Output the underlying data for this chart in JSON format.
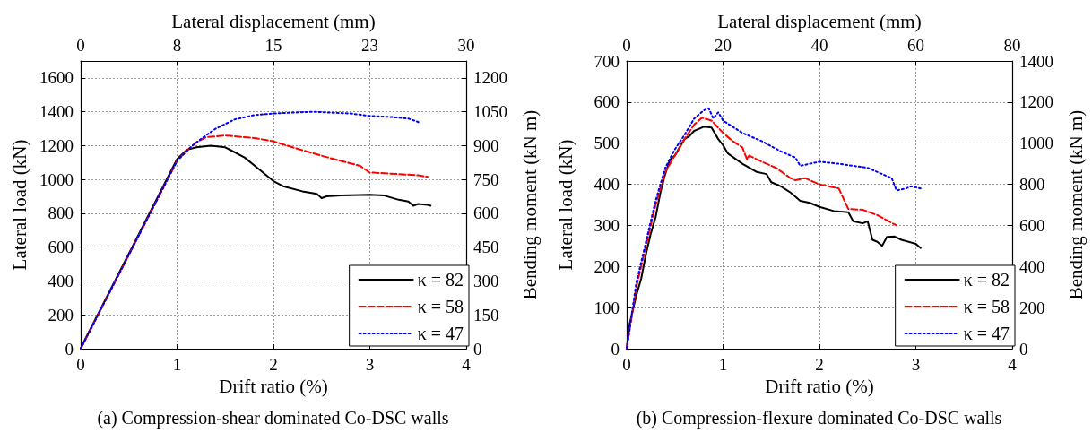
{
  "chart_data": [
    {
      "type": "line",
      "title": "(a) Compression-shear dominated Co-DSC walls",
      "xlabel": "Drift ratio (%)",
      "ylabel": "Lateral load (kN)",
      "y2label": "Bending moment (kN m)",
      "x2label": "Lateral displacement (mm)",
      "xlim": [
        0,
        4
      ],
      "xticks": [
        0,
        1,
        2,
        3,
        4
      ],
      "ylim": [
        0,
        1700
      ],
      "yticks": [
        0,
        200,
        400,
        600,
        800,
        1000,
        1200,
        1400,
        1600
      ],
      "y2lim": [
        0,
        1275
      ],
      "y2ticks": [
        0,
        150,
        300,
        450,
        600,
        750,
        900,
        1050,
        1200
      ],
      "x2lim": [
        0,
        30
      ],
      "x2ticks": [
        0,
        {
          "value": 7.5,
          "label": "8"
        },
        15,
        {
          "value": 22.5,
          "label": "23"
        },
        30
      ],
      "grid": true,
      "legend": "bottom right",
      "series": [
        {
          "name": "κ = 82",
          "color": "#000000",
          "line_style": "solid",
          "x": [
            0,
            0.05,
            1,
            1.1,
            1.2,
            1.35,
            1.5,
            1.7,
            1.85,
            2,
            2.1,
            2.3,
            2.45,
            2.5,
            2.55,
            2.7,
            3,
            3.15,
            3.3,
            3.4,
            3.45,
            3.5,
            3.6,
            3.63
          ],
          "values": [
            0,
            60,
            1120,
            1175,
            1190,
            1200,
            1190,
            1130,
            1060,
            990,
            960,
            930,
            915,
            890,
            900,
            905,
            910,
            905,
            880,
            870,
            845,
            855,
            850,
            845
          ]
        },
        {
          "name": "κ = 58",
          "color": "#ff0000",
          "line_style": "dashed",
          "x": [
            0,
            1,
            1.1,
            1.2,
            1.3,
            1.5,
            1.8,
            2,
            2.2,
            2.5,
            2.9,
            3,
            3.05,
            3.5,
            3.6
          ],
          "values": [
            0,
            1110,
            1170,
            1220,
            1250,
            1260,
            1245,
            1225,
            1190,
            1140,
            1080,
            1040,
            1040,
            1025,
            1015
          ]
        },
        {
          "name": "κ = 47",
          "color": "#0000ff",
          "line_style": "dotted",
          "x": [
            0,
            1,
            1.15,
            1.25,
            1.4,
            1.6,
            1.8,
            2,
            2.2,
            2.4,
            2.6,
            2.8,
            3,
            3.2,
            3.4,
            3.5,
            3.52
          ],
          "values": [
            0,
            1110,
            1195,
            1240,
            1300,
            1355,
            1380,
            1390,
            1395,
            1400,
            1395,
            1390,
            1375,
            1370,
            1360,
            1340,
            1330
          ]
        }
      ]
    },
    {
      "type": "line",
      "title": "(b) Compression-flexure dominated Co-DSC walls",
      "xlabel": "Drift ratio (%)",
      "ylabel": "Lateral load (kN)",
      "y2label": "Bending moment (kN m)",
      "x2label": "Lateral displacement (mm)",
      "xlim": [
        0,
        4
      ],
      "xticks": [
        0,
        1,
        2,
        3,
        4
      ],
      "ylim": [
        0,
        700
      ],
      "yticks": [
        0,
        100,
        200,
        300,
        400,
        500,
        600,
        700
      ],
      "y2lim": [
        0,
        1400
      ],
      "y2ticks": [
        0,
        200,
        400,
        600,
        800,
        1000,
        1200,
        1400
      ],
      "x2lim": [
        0,
        80
      ],
      "x2ticks": [
        0,
        20,
        40,
        60,
        80
      ],
      "grid": true,
      "legend": "bottom right",
      "series": [
        {
          "name": "κ = 82",
          "color": "#000000",
          "line_style": "solid",
          "x": [
            0,
            0.03,
            0.1,
            0.15,
            0.2,
            0.25,
            0.3,
            0.35,
            0.4,
            0.45,
            0.5,
            0.55,
            0.6,
            0.65,
            0.7,
            0.8,
            0.88,
            0.95,
            1,
            1.05,
            1.2,
            1.35,
            1.45,
            1.5,
            1.6,
            1.7,
            1.8,
            1.9,
            2,
            2.15,
            2.3,
            2.35,
            2.45,
            2.5,
            2.55,
            2.6,
            2.65,
            2.7,
            2.78,
            2.85,
            3,
            3.05
          ],
          "values": [
            0,
            60,
            130,
            170,
            230,
            280,
            320,
            380,
            425,
            460,
            470,
            490,
            510,
            517,
            530,
            540,
            538,
            510,
            495,
            475,
            450,
            430,
            425,
            405,
            395,
            380,
            360,
            355,
            345,
            335,
            332,
            310,
            305,
            310,
            265,
            260,
            250,
            272,
            273,
            265,
            255,
            245
          ]
        },
        {
          "name": "κ = 58",
          "color": "#ff0000",
          "line_style": "dashed",
          "x": [
            0,
            0.1,
            0.2,
            0.3,
            0.4,
            0.5,
            0.6,
            0.7,
            0.78,
            0.88,
            1,
            1.1,
            1.2,
            1.25,
            1.27,
            1.4,
            1.55,
            1.7,
            1.75,
            1.85,
            2,
            2.2,
            2.3,
            2.45,
            2.6,
            2.8
          ],
          "values": [
            0,
            150,
            250,
            350,
            430,
            470,
            510,
            545,
            562,
            555,
            525,
            505,
            490,
            460,
            470,
            455,
            440,
            415,
            410,
            415,
            400,
            390,
            340,
            338,
            325,
            300
          ]
        },
        {
          "name": "κ = 47",
          "color": "#0000ff",
          "line_style": "dotted",
          "x": [
            0,
            0.1,
            0.2,
            0.3,
            0.4,
            0.5,
            0.6,
            0.7,
            0.8,
            0.85,
            0.9,
            0.95,
            1,
            1.1,
            1.2,
            1.4,
            1.6,
            1.75,
            1.8,
            2,
            2.2,
            2.5,
            2.65,
            2.75,
            2.8,
            2.9,
            2.95,
            3.05
          ],
          "values": [
            0,
            160,
            260,
            360,
            440,
            485,
            520,
            560,
            580,
            585,
            560,
            575,
            555,
            540,
            525,
            505,
            480,
            465,
            445,
            455,
            450,
            440,
            425,
            415,
            385,
            390,
            395,
            390
          ]
        }
      ]
    }
  ]
}
